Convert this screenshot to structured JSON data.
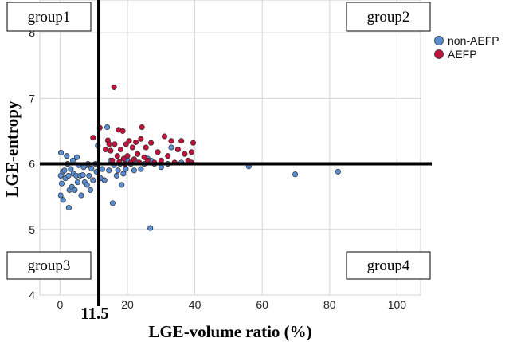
{
  "chart_data": {
    "type": "scatter",
    "title": "",
    "xlabel": "LGE-volume ratio (%)",
    "ylabel": "LGE-entropy",
    "xlim": [
      -6,
      107
    ],
    "ylim": [
      4,
      8.5
    ],
    "x_ticks": [
      0,
      20,
      40,
      60,
      80,
      100
    ],
    "y_ticks": [
      4,
      5,
      6,
      7,
      8
    ],
    "grid": true,
    "legend": {
      "position": "top-right",
      "entries": [
        {
          "name": "non-AEFP",
          "color": "#5b8fd4"
        },
        {
          "name": "AEFP",
          "color": "#c0143c"
        }
      ]
    },
    "threshold_lines": {
      "x": 11.5,
      "y": 6.0,
      "x_label": "11.5"
    },
    "group_labels": {
      "top_left": "group1",
      "top_right": "group2",
      "bottom_left": "group3",
      "bottom_right": "group4"
    },
    "series": [
      {
        "name": "non-AEFP",
        "color": "#5b8fd4",
        "points": [
          [
            0.3,
            6.17
          ],
          [
            0.8,
            5.88
          ],
          [
            0.2,
            5.82
          ],
          [
            0.5,
            5.7
          ],
          [
            0.2,
            5.52
          ],
          [
            0.9,
            5.45
          ],
          [
            1.3,
            5.9
          ],
          [
            1.6,
            5.78
          ],
          [
            2.0,
            6.12
          ],
          [
            2.2,
            6.0
          ],
          [
            2.5,
            5.82
          ],
          [
            2.8,
            5.6
          ],
          [
            2.6,
            5.33
          ],
          [
            3.2,
            5.92
          ],
          [
            3.5,
            5.65
          ],
          [
            3.8,
            6.05
          ],
          [
            4.0,
            5.85
          ],
          [
            4.4,
            5.6
          ],
          [
            4.8,
            5.82
          ],
          [
            5.0,
            6.1
          ],
          [
            5.2,
            5.72
          ],
          [
            5.5,
            5.98
          ],
          [
            6.0,
            5.82
          ],
          [
            6.3,
            5.52
          ],
          [
            6.8,
            5.83
          ],
          [
            7.0,
            5.95
          ],
          [
            7.3,
            5.72
          ],
          [
            7.8,
            5.98
          ],
          [
            8.0,
            5.68
          ],
          [
            8.3,
            6.0
          ],
          [
            8.6,
            5.82
          ],
          [
            9.0,
            5.6
          ],
          [
            9.3,
            5.93
          ],
          [
            9.8,
            5.75
          ],
          [
            10.5,
            6.0
          ],
          [
            10.8,
            5.88
          ],
          [
            11.2,
            6.28
          ],
          [
            12.0,
            5.78
          ],
          [
            12.5,
            5.92
          ],
          [
            13.2,
            5.75
          ],
          [
            14.0,
            6.56
          ],
          [
            14.5,
            5.9
          ],
          [
            15.0,
            6.05
          ],
          [
            15.6,
            5.4
          ],
          [
            16.0,
            5.98
          ],
          [
            16.8,
            5.82
          ],
          [
            17.2,
            5.9
          ],
          [
            17.8,
            6.0
          ],
          [
            18.3,
            5.68
          ],
          [
            18.8,
            5.85
          ],
          [
            19.5,
            5.92
          ],
          [
            20.0,
            6.05
          ],
          [
            21.0,
            6.0
          ],
          [
            22.0,
            5.9
          ],
          [
            23.0,
            6.02
          ],
          [
            24.0,
            5.92
          ],
          [
            25.0,
            6.0
          ],
          [
            26.0,
            6.08
          ],
          [
            27.0,
            6.05
          ],
          [
            26.8,
            5.02
          ],
          [
            28.0,
            6.0
          ],
          [
            30.0,
            5.95
          ],
          [
            32.0,
            6.0
          ],
          [
            33.0,
            6.25
          ],
          [
            36.0,
            6.02
          ],
          [
            56.0,
            5.96
          ],
          [
            69.8,
            5.84
          ],
          [
            82.5,
            5.88
          ]
        ]
      },
      {
        "name": "AEFP",
        "color": "#c0143c",
        "points": [
          [
            9.8,
            6.4
          ],
          [
            11.8,
            6.55
          ],
          [
            13.5,
            6.22
          ],
          [
            14.2,
            6.36
          ],
          [
            14.6,
            6.3
          ],
          [
            15.0,
            6.2
          ],
          [
            15.5,
            6.05
          ],
          [
            16.2,
            6.3
          ],
          [
            16.0,
            7.17
          ],
          [
            17.0,
            6.12
          ],
          [
            17.4,
            6.52
          ],
          [
            17.6,
            6.03
          ],
          [
            18.0,
            6.22
          ],
          [
            18.6,
            6.5
          ],
          [
            18.9,
            6.08
          ],
          [
            19.3,
            6.0
          ],
          [
            19.6,
            6.3
          ],
          [
            20.0,
            6.12
          ],
          [
            20.5,
            6.35
          ],
          [
            21.0,
            6.02
          ],
          [
            21.5,
            6.25
          ],
          [
            22.0,
            6.07
          ],
          [
            22.5,
            6.33
          ],
          [
            23.0,
            6.15
          ],
          [
            23.5,
            6.02
          ],
          [
            24.0,
            6.38
          ],
          [
            24.3,
            6.56
          ],
          [
            25.0,
            6.1
          ],
          [
            25.5,
            6.25
          ],
          [
            26.0,
            6.05
          ],
          [
            27.0,
            6.32
          ],
          [
            28.0,
            6.02
          ],
          [
            29.0,
            6.18
          ],
          [
            30.0,
            6.05
          ],
          [
            31.0,
            6.42
          ],
          [
            32.0,
            6.12
          ],
          [
            33.0,
            6.35
          ],
          [
            34.0,
            6.02
          ],
          [
            35.0,
            6.22
          ],
          [
            36.0,
            6.35
          ],
          [
            37.0,
            6.15
          ],
          [
            38.0,
            6.05
          ],
          [
            39.0,
            6.18
          ],
          [
            39.5,
            6.32
          ],
          [
            39.0,
            6.02
          ]
        ]
      }
    ]
  }
}
